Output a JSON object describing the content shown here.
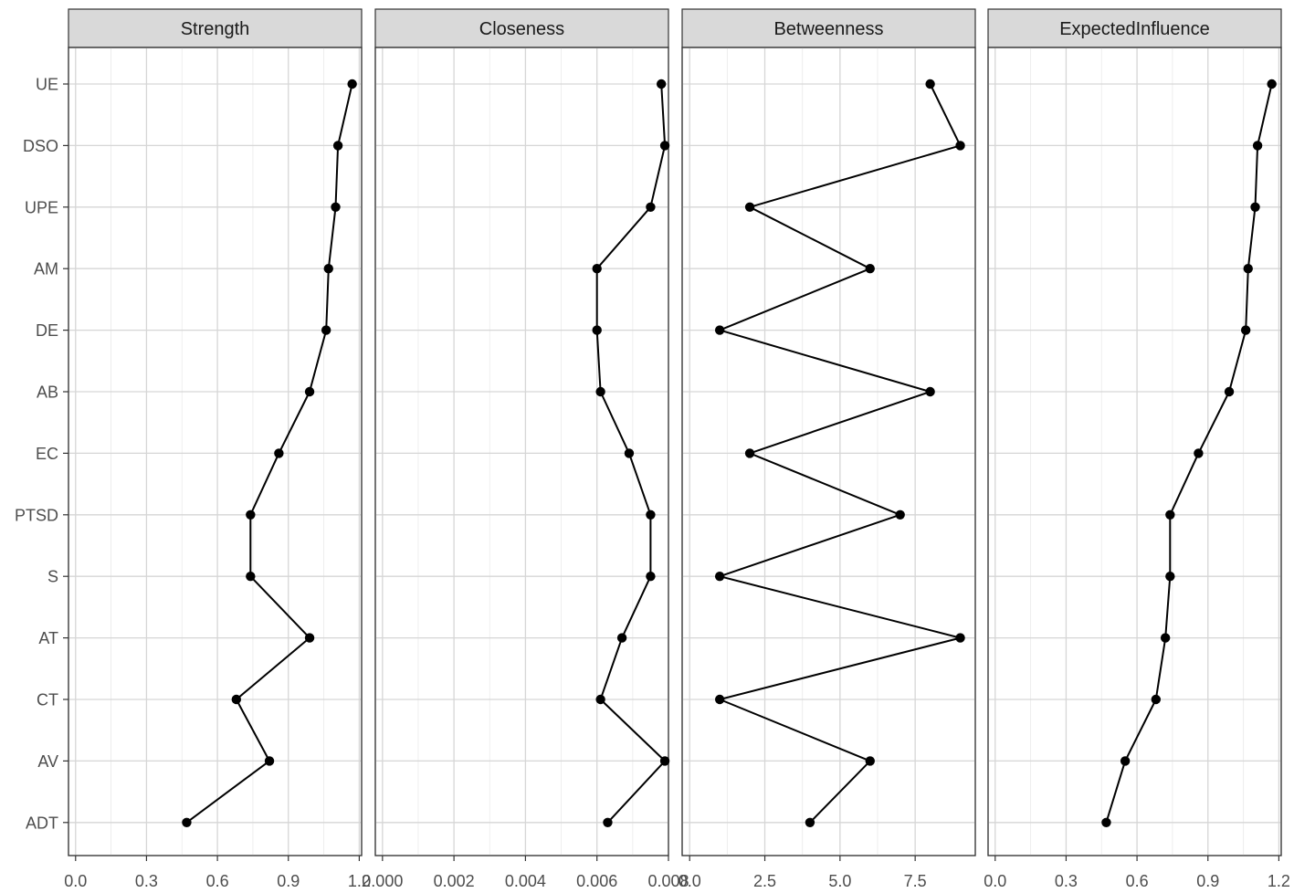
{
  "chart_data": {
    "type": "line",
    "layout": "facet",
    "categories": [
      "UE",
      "DSO",
      "UPE",
      "AM",
      "DE",
      "AB",
      "EC",
      "PTSD",
      "S",
      "AT",
      "CT",
      "AV",
      "ADT"
    ],
    "grid": true,
    "legend": "none",
    "facets": [
      {
        "name": "Strength",
        "xlim": [
          -0.03,
          1.21
        ],
        "xticks": [
          0.0,
          0.3,
          0.6,
          0.9,
          1.2
        ],
        "xtick_labels": [
          "0.0",
          "0.3",
          "0.6",
          "0.9",
          "1.2"
        ],
        "values": [
          1.17,
          1.11,
          1.1,
          1.07,
          1.06,
          0.99,
          0.86,
          0.74,
          0.74,
          0.99,
          0.68,
          0.82,
          0.47
        ]
      },
      {
        "name": "Closeness",
        "xlim": [
          -0.0002,
          0.008
        ],
        "xticks": [
          0.0,
          0.002,
          0.004,
          0.006,
          0.008
        ],
        "xtick_labels": [
          "0.000",
          "0.002",
          "0.004",
          "0.006",
          "0.008"
        ],
        "values": [
          0.0078,
          0.0079,
          0.0075,
          0.006,
          0.006,
          0.0061,
          0.0069,
          0.0075,
          0.0075,
          0.0067,
          0.0061,
          0.0079,
          0.0063
        ]
      },
      {
        "name": "Betweenness",
        "xlim": [
          -0.25,
          9.5
        ],
        "xticks": [
          0.0,
          2.5,
          5.0,
          7.5
        ],
        "xtick_labels": [
          "0.0",
          "2.5",
          "5.0",
          "7.5"
        ],
        "values": [
          8,
          9,
          2,
          6,
          1,
          8,
          2,
          7,
          1,
          9,
          1,
          6,
          4
        ]
      },
      {
        "name": "ExpectedInfluence",
        "xlim": [
          -0.03,
          1.21
        ],
        "xticks": [
          0.0,
          0.3,
          0.6,
          0.9,
          1.2
        ],
        "xtick_labels": [
          "0.0",
          "0.3",
          "0.6",
          "0.9",
          "1.2"
        ],
        "values": [
          1.17,
          1.11,
          1.1,
          1.07,
          1.06,
          0.99,
          0.86,
          0.74,
          0.74,
          0.72,
          0.68,
          0.55,
          0.47
        ]
      }
    ]
  }
}
